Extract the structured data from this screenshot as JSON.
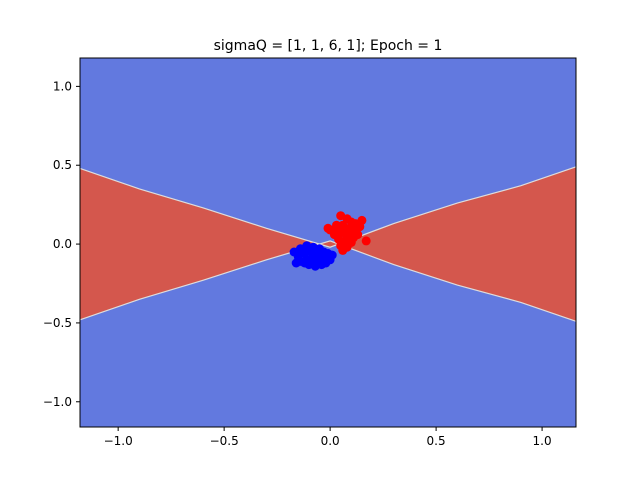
{
  "chart_data": {
    "type": "scatter",
    "title": "sigmaQ = [1, 1, 6, 1]; Epoch = 1",
    "xlabel": "",
    "ylabel": "",
    "xlim": [
      -1.18,
      1.16
    ],
    "ylim": [
      -1.16,
      1.18
    ],
    "x_ticks": [
      -1.0,
      -0.5,
      0.0,
      0.5,
      1.0
    ],
    "x_tick_labels": [
      "−1.0",
      "−0.5",
      "0.0",
      "0.5",
      "1.0"
    ],
    "y_ticks": [
      -1.0,
      -0.5,
      0.0,
      0.5,
      1.0
    ],
    "y_tick_labels": [
      "−1.0",
      "−0.5",
      "0.0",
      "0.5",
      "1.0"
    ],
    "grid": false,
    "legend": "none",
    "background_region": {
      "color": "#6279df",
      "class": "blue"
    },
    "decision_region": {
      "color": "#d4574d",
      "class": "red",
      "boundary_color": "#dddddd",
      "shape": "bowtie",
      "boundary": [
        {
          "x": -1.18,
          "y": 0.48
        },
        {
          "x": -0.9,
          "y": 0.35
        },
        {
          "x": -0.6,
          "y": 0.23
        },
        {
          "x": -0.3,
          "y": 0.1
        },
        {
          "x": 0.0,
          "y": -0.02
        },
        {
          "x": 0.3,
          "y": 0.13
        },
        {
          "x": 0.6,
          "y": 0.26
        },
        {
          "x": 0.9,
          "y": 0.37
        },
        {
          "x": 1.16,
          "y": 0.49
        }
      ]
    },
    "series": [
      {
        "color": "#ff0000",
        "points": [
          [
            0.05,
            0.18
          ],
          [
            0.08,
            0.16
          ],
          [
            0.1,
            0.14
          ],
          [
            0.12,
            0.13
          ],
          [
            0.15,
            0.15
          ],
          [
            0.03,
            0.1
          ],
          [
            0.06,
            0.12
          ],
          [
            0.09,
            0.1
          ],
          [
            0.12,
            0.09
          ],
          [
            0.13,
            0.06
          ],
          [
            0.0,
            0.09
          ],
          [
            0.02,
            0.06
          ],
          [
            0.05,
            0.07
          ],
          [
            0.08,
            0.05
          ],
          [
            0.11,
            0.04
          ],
          [
            0.04,
            0.03
          ],
          [
            0.07,
            0.02
          ],
          [
            0.1,
            0.01
          ],
          [
            0.05,
            -0.01
          ],
          [
            0.08,
            -0.02
          ],
          [
            0.06,
            -0.04
          ],
          [
            0.17,
            0.02
          ],
          [
            0.14,
            0.11
          ],
          [
            0.07,
            0.08
          ],
          [
            0.1,
            0.07
          ],
          [
            -0.01,
            0.1
          ],
          [
            0.03,
            0.12
          ]
        ]
      },
      {
        "color": "#0000ff",
        "points": [
          [
            -0.17,
            -0.05
          ],
          [
            -0.14,
            -0.03
          ],
          [
            -0.11,
            -0.01
          ],
          [
            -0.08,
            -0.02
          ],
          [
            -0.05,
            -0.03
          ],
          [
            -0.03,
            -0.05
          ],
          [
            -0.01,
            -0.06
          ],
          [
            0.01,
            -0.07
          ],
          [
            -0.15,
            -0.08
          ],
          [
            -0.12,
            -0.06
          ],
          [
            -0.09,
            -0.05
          ],
          [
            -0.06,
            -0.07
          ],
          [
            -0.03,
            -0.09
          ],
          [
            -0.14,
            -0.11
          ],
          [
            -0.11,
            -0.1
          ],
          [
            -0.08,
            -0.09
          ],
          [
            -0.05,
            -0.11
          ],
          [
            -0.02,
            -0.12
          ],
          [
            -0.1,
            -0.13
          ],
          [
            -0.07,
            -0.14
          ],
          [
            -0.04,
            -0.13
          ],
          [
            -0.12,
            -0.12
          ],
          [
            -0.09,
            -0.12
          ],
          [
            -0.06,
            -0.1
          ],
          [
            0.0,
            -0.1
          ],
          [
            -0.16,
            -0.12
          ],
          [
            -0.08,
            -0.07
          ],
          [
            -0.04,
            -0.08
          ]
        ]
      }
    ]
  }
}
